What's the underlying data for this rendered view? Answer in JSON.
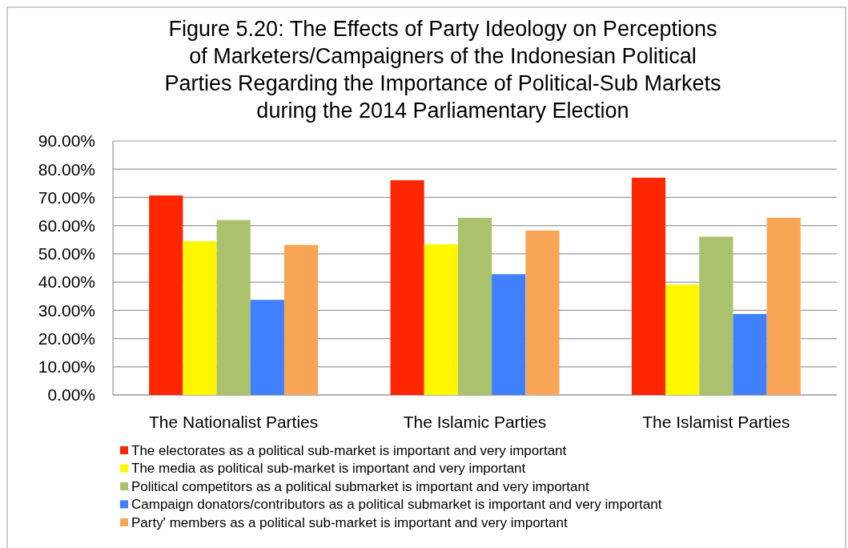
{
  "chart_data": {
    "type": "bar",
    "title": "Figure 5.20: The Effects of Party Ideology on Perceptions of Marketers/Campaigners of the Indonesian Political Parties Regarding the Importance of Political-Sub Markets during the 2014 Parliamentary Election",
    "categories": [
      "The Nationalist Parties",
      "The Islamic Parties",
      "The Islamist Parties"
    ],
    "series": [
      {
        "name": "The electorates as a political sub-market is important and very important",
        "color": "#ff2600",
        "values": [
          70.7,
          76.1,
          77.0
        ]
      },
      {
        "name": "The media as political sub-market is important and very important",
        "color": "#fff700",
        "values": [
          54.5,
          53.4,
          39.1
        ]
      },
      {
        "name": "Political competitors as a political submarket is important and very important",
        "color": "#aac26b",
        "values": [
          62.0,
          62.8,
          56.1
        ]
      },
      {
        "name": "Campaign donators/contributors as a political submarket is important and very important",
        "color": "#4080ff",
        "values": [
          33.7,
          42.8,
          28.7
        ]
      },
      {
        "name": "Party' members as a political sub-market is important and very important",
        "color": "#f8a656",
        "values": [
          53.2,
          58.3,
          62.8
        ]
      }
    ],
    "ylim": [
      0,
      90
    ],
    "yticks": [
      {
        "value": 0,
        "label": "0.00%"
      },
      {
        "value": 10,
        "label": "10.00%"
      },
      {
        "value": 20,
        "label": "20.00%"
      },
      {
        "value": 30,
        "label": "30.00%"
      },
      {
        "value": 40,
        "label": "40.00%"
      },
      {
        "value": 50,
        "label": "50.00%"
      },
      {
        "value": 60,
        "label": "60.00%"
      },
      {
        "value": 70,
        "label": "70.00%"
      },
      {
        "value": 80,
        "label": "80.00%"
      },
      {
        "value": 90,
        "label": "90.00%"
      }
    ],
    "grid": "y",
    "legend": "bottom"
  }
}
